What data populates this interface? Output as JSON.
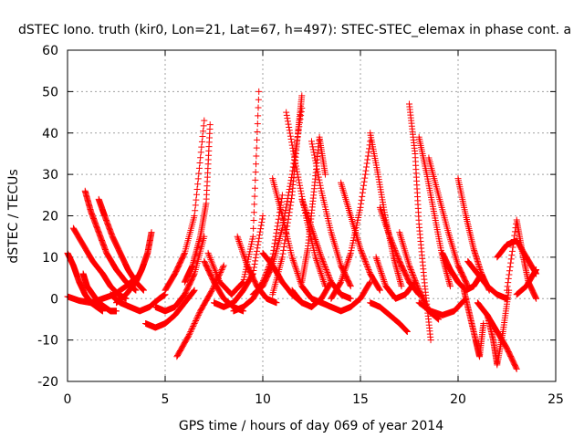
{
  "chart_data": {
    "type": "scatter",
    "title": "dSTEC Iono. truth (kir0, Lon=21, Lat=67, h=497): STEC-STEC_elemax in phase cont. a",
    "xlabel": "GPS time / hours of day 069 of year 2014",
    "ylabel": "dSTEC  / TECUs",
    "xlim": [
      0,
      25
    ],
    "ylim": [
      -20,
      60
    ],
    "xticks": [
      0,
      5,
      10,
      15,
      20,
      25
    ],
    "yticks": [
      -20,
      -10,
      0,
      10,
      20,
      30,
      40,
      50,
      60
    ],
    "grid": true,
    "marker": "+",
    "color": "#ff0000",
    "series": [
      {
        "x": [
          0.0,
          0.3,
          0.6,
          0.9,
          1.2,
          1.5,
          1.8
        ],
        "y": [
          11,
          8,
          4,
          1,
          -1,
          -2,
          -3
        ]
      },
      {
        "x": [
          0.0,
          0.6,
          1.2,
          1.8,
          2.4,
          3.0,
          3.5
        ],
        "y": [
          0.5,
          -0.5,
          -1,
          0,
          1,
          3,
          5
        ]
      },
      {
        "x": [
          0.3,
          0.8,
          1.3,
          1.8,
          2.2,
          2.6,
          3.0
        ],
        "y": [
          17,
          13,
          9,
          6,
          3,
          1,
          0
        ]
      },
      {
        "x": [
          0.8,
          1.0,
          1.3,
          1.6,
          1.9,
          2.2,
          2.5
        ],
        "y": [
          6,
          3,
          1,
          -1,
          -2,
          -3,
          -3
        ]
      },
      {
        "x": [
          0.9,
          1.2,
          1.6,
          2.0,
          2.5,
          3.0,
          3.5
        ],
        "y": [
          26,
          21,
          16,
          11,
          7,
          4,
          2
        ]
      },
      {
        "x": [
          1.6,
          1.9,
          2.3,
          2.7,
          3.1,
          3.5,
          3.9
        ],
        "y": [
          24,
          20,
          15,
          11,
          7,
          4,
          2
        ]
      },
      {
        "x": [
          2.2,
          2.7,
          3.2,
          3.7,
          4.2,
          4.7,
          5.0
        ],
        "y": [
          1,
          -1,
          -2,
          -3,
          -2,
          0,
          1
        ]
      },
      {
        "x": [
          2.5,
          3.0,
          3.5,
          3.8,
          4.1,
          4.3
        ],
        "y": [
          -1,
          1,
          4,
          7,
          11,
          16
        ]
      },
      {
        "x": [
          4.0,
          4.5,
          5.0,
          5.5,
          6.0,
          6.5
        ],
        "y": [
          -6,
          -7,
          -6,
          -4,
          -1,
          2
        ]
      },
      {
        "x": [
          4.5,
          5.0,
          5.5,
          6.0,
          6.5,
          7.0
        ],
        "y": [
          -2,
          -3,
          -2,
          1,
          6,
          15
        ]
      },
      {
        "x": [
          5.0,
          5.5,
          6.0,
          6.5,
          7.0
        ],
        "y": [
          2,
          6,
          11,
          20,
          43
        ]
      },
      {
        "x": [
          5.6,
          6.2,
          6.8,
          7.4,
          8.0
        ],
        "y": [
          -14,
          -9,
          -3,
          2,
          8
        ]
      },
      {
        "x": [
          6.0,
          6.4,
          6.8,
          7.1,
          7.3
        ],
        "y": [
          4,
          8,
          15,
          23,
          42
        ]
      },
      {
        "x": [
          7.0,
          7.5,
          8.0,
          8.5,
          9.0
        ],
        "y": [
          9,
          4,
          0,
          -2,
          -3
        ]
      },
      {
        "x": [
          7.2,
          7.8,
          8.4,
          9.0,
          9.5,
          9.8
        ],
        "y": [
          11,
          4,
          1,
          4,
          15,
          50
        ]
      },
      {
        "x": [
          7.5,
          8.0,
          8.5,
          9.0,
          9.5,
          10.0
        ],
        "y": [
          -1,
          -2,
          -1,
          2,
          6,
          20
        ]
      },
      {
        "x": [
          8.5,
          9.0,
          9.5,
          10.0,
          10.5,
          11.0
        ],
        "y": [
          -3,
          -2,
          0,
          4,
          10,
          25
        ]
      },
      {
        "x": [
          8.7,
          9.2,
          9.7,
          10.2,
          10.7
        ],
        "y": [
          15,
          8,
          3,
          0,
          -1
        ]
      },
      {
        "x": [
          9.5,
          10.0,
          10.5,
          11.0,
          11.5,
          12.0
        ],
        "y": [
          1,
          3,
          8,
          17,
          30,
          46
        ]
      },
      {
        "x": [
          10.0,
          10.5,
          11.0,
          11.5,
          12.0
        ],
        "y": [
          11,
          8,
          4,
          1,
          -1
        ]
      },
      {
        "x": [
          10.5,
          11.0,
          11.5,
          11.8,
          12.0
        ],
        "y": [
          1,
          10,
          25,
          40,
          49
        ]
      },
      {
        "x": [
          10.5,
          11.0,
          11.5,
          12.0,
          12.5,
          13.0
        ],
        "y": [
          29,
          20,
          10,
          3,
          0,
          -1
        ]
      },
      {
        "x": [
          11.2,
          11.7,
          12.2,
          12.7,
          13.2
        ],
        "y": [
          45,
          32,
          20,
          10,
          3
        ]
      },
      {
        "x": [
          11.5,
          12.0,
          12.5,
          13.0,
          13.5
        ],
        "y": [
          2,
          -1,
          -2,
          0,
          4
        ]
      },
      {
        "x": [
          12.0,
          12.5,
          13.0,
          13.5,
          14.0,
          14.5
        ],
        "y": [
          24,
          17,
          10,
          4,
          1,
          0
        ]
      },
      {
        "x": [
          12.0,
          12.3,
          12.6,
          12.9,
          13.2
        ],
        "y": [
          4,
          12,
          25,
          39,
          30
        ]
      },
      {
        "x": [
          12.5,
          13.0,
          13.5,
          14.0,
          14.5
        ],
        "y": [
          38,
          26,
          16,
          8,
          3
        ]
      },
      {
        "x": [
          13.0,
          13.5,
          14.0,
          14.5,
          15.0,
          15.5
        ],
        "y": [
          -1,
          -2,
          -3,
          -2,
          0,
          4
        ]
      },
      {
        "x": [
          13.5,
          14.0,
          14.5,
          15.0,
          15.5
        ],
        "y": [
          0,
          4,
          11,
          22,
          38
        ]
      },
      {
        "x": [
          14.0,
          14.5,
          15.0,
          15.5,
          16.0
        ],
        "y": [
          28,
          20,
          12,
          6,
          2
        ]
      },
      {
        "x": [
          15.5,
          15.9,
          16.3,
          16.7,
          17.1
        ],
        "y": [
          40,
          30,
          19,
          10,
          3
        ]
      },
      {
        "x": [
          15.5,
          16.0,
          16.5,
          17.0,
          17.4
        ],
        "y": [
          -1,
          -2,
          -4,
          -6,
          -8
        ]
      },
      {
        "x": [
          15.8,
          16.3,
          16.8,
          17.3,
          17.8
        ],
        "y": [
          10,
          3,
          0,
          1,
          4
        ]
      },
      {
        "x": [
          16.0,
          16.5,
          17.0,
          17.5,
          18.0
        ],
        "y": [
          22,
          15,
          9,
          4,
          1
        ]
      },
      {
        "x": [
          17.0,
          17.5,
          18.0,
          18.5,
          19.0
        ],
        "y": [
          16,
          8,
          2,
          -3,
          -5
        ]
      },
      {
        "x": [
          17.5,
          17.8,
          18.0,
          18.3,
          18.6
        ],
        "y": [
          47,
          35,
          18,
          3,
          -10
        ]
      },
      {
        "x": [
          18.0,
          18.4,
          18.8,
          19.2,
          19.6
        ],
        "y": [
          39,
          30,
          20,
          10,
          3
        ]
      },
      {
        "x": [
          18.0,
          18.6,
          19.2,
          19.8,
          20.4
        ],
        "y": [
          -1,
          -3,
          -4,
          -3,
          0
        ]
      },
      {
        "x": [
          18.5,
          19.0,
          19.5,
          20.0,
          20.5
        ],
        "y": [
          34,
          25,
          16,
          8,
          3
        ]
      },
      {
        "x": [
          19.2,
          19.6,
          20.0,
          20.4,
          20.8,
          21.2
        ],
        "y": [
          11,
          7,
          4,
          2,
          3,
          6
        ]
      },
      {
        "x": [
          20.0,
          20.4,
          20.8,
          21.2,
          21.6
        ],
        "y": [
          29,
          20,
          12,
          6,
          2
        ]
      },
      {
        "x": [
          20.3,
          20.6,
          20.9,
          21.1,
          21.3
        ],
        "y": [
          2,
          -4,
          -10,
          -14,
          -6
        ]
      },
      {
        "x": [
          20.5,
          21.0,
          21.5,
          22.0,
          22.5
        ],
        "y": [
          9,
          6,
          3,
          1,
          0
        ]
      },
      {
        "x": [
          21.0,
          21.5,
          22.0,
          22.5,
          23.0
        ],
        "y": [
          -1,
          -4,
          -8,
          -12,
          -17
        ]
      },
      {
        "x": [
          21.5,
          21.8,
          22.0,
          22.3,
          22.6
        ],
        "y": [
          -4,
          -10,
          -16,
          -8,
          2
        ]
      },
      {
        "x": [
          22.0,
          22.5,
          23.0,
          23.5,
          24.0
        ],
        "y": [
          10,
          13,
          14,
          10,
          6
        ]
      },
      {
        "x": [
          22.5,
          23.0,
          23.3,
          23.6,
          24.0
        ],
        "y": [
          2,
          19,
          11,
          4,
          0
        ]
      },
      {
        "x": [
          23.0,
          23.5,
          24.0
        ],
        "y": [
          1,
          3,
          7
        ]
      }
    ]
  }
}
